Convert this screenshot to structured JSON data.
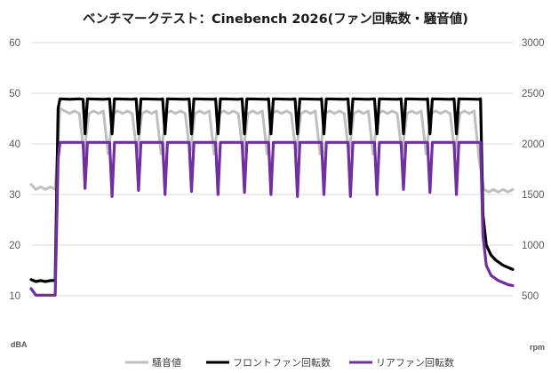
{
  "chart_data": {
    "type": "line",
    "title": "ベンチマークテスト：Cinebench 2026(ファン回転数・騒音値)",
    "y_left": {
      "unit": "dBA",
      "ticks": [
        10,
        20,
        30,
        40,
        50,
        60
      ],
      "range": [
        10,
        60
      ]
    },
    "y_right": {
      "unit": "rpm",
      "ticks": [
        500,
        1000,
        1500,
        2000,
        2500,
        3000
      ],
      "range": [
        500,
        3000
      ]
    },
    "x_range": [
      0,
      100
    ],
    "grid": true,
    "legend_position": "bottom",
    "series": [
      {
        "name": "騒音値",
        "axis": "left",
        "color": "#bfbfbf",
        "points": [
          [
            0,
            32
          ],
          [
            1,
            31
          ],
          [
            2,
            31.5
          ],
          [
            3,
            31
          ],
          [
            4,
            31.5
          ],
          [
            5,
            31
          ],
          [
            6,
            47
          ],
          [
            7,
            46.5
          ],
          [
            8,
            46
          ],
          [
            9,
            46.5
          ],
          [
            10,
            46
          ],
          [
            11,
            38
          ],
          [
            12,
            46
          ],
          [
            13,
            46.5
          ],
          [
            14,
            46
          ],
          [
            15,
            46.5
          ],
          [
            16,
            38
          ],
          [
            17,
            46
          ],
          [
            18,
            46.5
          ],
          [
            19,
            46
          ],
          [
            20,
            46.5
          ],
          [
            21,
            46
          ],
          [
            22,
            38
          ],
          [
            23,
            46
          ],
          [
            24,
            46.5
          ],
          [
            25,
            46
          ],
          [
            26,
            46.5
          ],
          [
            27,
            38
          ],
          [
            28,
            46
          ],
          [
            29,
            46.5
          ],
          [
            30,
            46
          ],
          [
            31,
            46.5
          ],
          [
            32,
            46
          ],
          [
            33,
            38
          ],
          [
            34,
            46
          ],
          [
            35,
            46.5
          ],
          [
            36,
            46
          ],
          [
            37,
            46.5
          ],
          [
            38,
            38
          ],
          [
            39,
            46
          ],
          [
            40,
            46.5
          ],
          [
            41,
            46
          ],
          [
            42,
            46.5
          ],
          [
            43,
            46
          ],
          [
            44,
            38
          ],
          [
            45,
            46
          ],
          [
            46,
            46.5
          ],
          [
            47,
            46
          ],
          [
            48,
            46.5
          ],
          [
            49,
            38
          ],
          [
            50,
            46
          ],
          [
            51,
            46.5
          ],
          [
            52,
            46
          ],
          [
            53,
            46.5
          ],
          [
            54,
            46
          ],
          [
            55,
            38
          ],
          [
            56,
            46
          ],
          [
            57,
            46.5
          ],
          [
            58,
            46
          ],
          [
            59,
            46.5
          ],
          [
            60,
            38
          ],
          [
            61,
            46
          ],
          [
            62,
            46.5
          ],
          [
            63,
            46
          ],
          [
            64,
            46.5
          ],
          [
            65,
            46
          ],
          [
            66,
            38
          ],
          [
            67,
            46
          ],
          [
            68,
            46.5
          ],
          [
            69,
            46
          ],
          [
            70,
            46.5
          ],
          [
            71,
            38
          ],
          [
            72,
            46
          ],
          [
            73,
            46.5
          ],
          [
            74,
            46
          ],
          [
            75,
            46.5
          ],
          [
            76,
            46
          ],
          [
            77,
            38
          ],
          [
            78,
            46
          ],
          [
            79,
            46.5
          ],
          [
            80,
            46
          ],
          [
            81,
            46.5
          ],
          [
            82,
            38
          ],
          [
            83,
            46
          ],
          [
            84,
            46.5
          ],
          [
            85,
            46
          ],
          [
            86,
            46.5
          ],
          [
            87,
            46
          ],
          [
            88,
            38
          ],
          [
            89,
            46
          ],
          [
            90,
            46.5
          ],
          [
            91,
            46
          ],
          [
            92,
            46.5
          ],
          [
            93,
            37
          ],
          [
            94,
            31
          ],
          [
            95,
            30.5
          ],
          [
            96,
            31
          ],
          [
            97,
            30.5
          ],
          [
            98,
            31
          ],
          [
            99,
            30.5
          ],
          [
            100,
            31
          ]
        ]
      },
      {
        "name": "フロントファン回転数",
        "axis": "right",
        "color": "#000000",
        "points": [
          [
            0,
            660
          ],
          [
            1,
            640
          ],
          [
            2,
            650
          ],
          [
            3,
            640
          ],
          [
            4,
            650
          ],
          [
            5,
            650
          ],
          [
            5.6,
            2350
          ],
          [
            6,
            2445
          ],
          [
            8,
            2440
          ],
          [
            10,
            2445
          ],
          [
            10.8,
            2440
          ],
          [
            11.2,
            2100
          ],
          [
            11.7,
            2445
          ],
          [
            15,
            2440
          ],
          [
            16.3,
            2445
          ],
          [
            16.8,
            2100
          ],
          [
            17.3,
            2445
          ],
          [
            21,
            2440
          ],
          [
            21.8,
            2445
          ],
          [
            22.3,
            2100
          ],
          [
            22.8,
            2445
          ],
          [
            27,
            2440
          ],
          [
            27.3,
            2445
          ],
          [
            27.8,
            2100
          ],
          [
            28.3,
            2445
          ],
          [
            32,
            2440
          ],
          [
            32.8,
            2445
          ],
          [
            33.3,
            2100
          ],
          [
            33.8,
            2445
          ],
          [
            38,
            2440
          ],
          [
            38.3,
            2445
          ],
          [
            38.8,
            2100
          ],
          [
            39.3,
            2445
          ],
          [
            43,
            2440
          ],
          [
            43.8,
            2445
          ],
          [
            44.3,
            2100
          ],
          [
            44.8,
            2445
          ],
          [
            49,
            2440
          ],
          [
            49.3,
            2445
          ],
          [
            49.8,
            2100
          ],
          [
            50.3,
            2445
          ],
          [
            54,
            2440
          ],
          [
            54.8,
            2445
          ],
          [
            55.3,
            2100
          ],
          [
            55.8,
            2445
          ],
          [
            60,
            2440
          ],
          [
            60.3,
            2445
          ],
          [
            60.8,
            2100
          ],
          [
            61.3,
            2445
          ],
          [
            65,
            2440
          ],
          [
            65.8,
            2445
          ],
          [
            66.3,
            2100
          ],
          [
            66.8,
            2445
          ],
          [
            70,
            2440
          ],
          [
            71.3,
            2445
          ],
          [
            71.8,
            2100
          ],
          [
            72.3,
            2445
          ],
          [
            76,
            2440
          ],
          [
            76.8,
            2445
          ],
          [
            77.3,
            2100
          ],
          [
            77.8,
            2445
          ],
          [
            82,
            2440
          ],
          [
            82.3,
            2445
          ],
          [
            82.8,
            2100
          ],
          [
            83.3,
            2445
          ],
          [
            87,
            2440
          ],
          [
            87.8,
            2445
          ],
          [
            88.3,
            2100
          ],
          [
            88.8,
            2445
          ],
          [
            93,
            2440
          ],
          [
            93.3,
            2445
          ],
          [
            93.8,
            1300
          ],
          [
            94.5,
            1000
          ],
          [
            95.5,
            900
          ],
          [
            96.5,
            850
          ],
          [
            98,
            800
          ],
          [
            100,
            760
          ]
        ]
      },
      {
        "name": "リアファン回転数",
        "axis": "right",
        "color": "#7030a0",
        "points": [
          [
            0,
            570
          ],
          [
            1,
            505
          ],
          [
            3,
            505
          ],
          [
            5,
            505
          ],
          [
            5.6,
            1850
          ],
          [
            6,
            2015
          ],
          [
            10.8,
            2015
          ],
          [
            11.2,
            1560
          ],
          [
            11.7,
            2015
          ],
          [
            16.3,
            2015
          ],
          [
            16.8,
            1480
          ],
          [
            17.3,
            2015
          ],
          [
            21.8,
            2015
          ],
          [
            22.3,
            1540
          ],
          [
            22.8,
            2015
          ],
          [
            27.3,
            2015
          ],
          [
            27.8,
            1500
          ],
          [
            28.3,
            2015
          ],
          [
            32.8,
            2015
          ],
          [
            33.3,
            1530
          ],
          [
            33.8,
            2015
          ],
          [
            38.3,
            2015
          ],
          [
            38.8,
            1500
          ],
          [
            39.3,
            2015
          ],
          [
            43.8,
            2015
          ],
          [
            44.3,
            1520
          ],
          [
            44.8,
            2015
          ],
          [
            49.3,
            2015
          ],
          [
            49.8,
            1500
          ],
          [
            50.3,
            2015
          ],
          [
            54.8,
            2015
          ],
          [
            55.3,
            1480
          ],
          [
            55.8,
            2015
          ],
          [
            60.3,
            2015
          ],
          [
            60.8,
            1500
          ],
          [
            61.3,
            2015
          ],
          [
            65.8,
            2015
          ],
          [
            66.3,
            1480
          ],
          [
            66.8,
            2015
          ],
          [
            71.3,
            2015
          ],
          [
            71.8,
            1500
          ],
          [
            72.3,
            2015
          ],
          [
            76.8,
            2015
          ],
          [
            77.3,
            1550
          ],
          [
            77.8,
            2015
          ],
          [
            82.3,
            2015
          ],
          [
            82.8,
            1520
          ],
          [
            83.3,
            2015
          ],
          [
            87.8,
            2015
          ],
          [
            88.3,
            1500
          ],
          [
            88.8,
            2015
          ],
          [
            93.3,
            2015
          ],
          [
            93.8,
            1100
          ],
          [
            94.5,
            800
          ],
          [
            95.5,
            700
          ],
          [
            97,
            650
          ],
          [
            99,
            610
          ],
          [
            100,
            600
          ]
        ]
      }
    ]
  }
}
